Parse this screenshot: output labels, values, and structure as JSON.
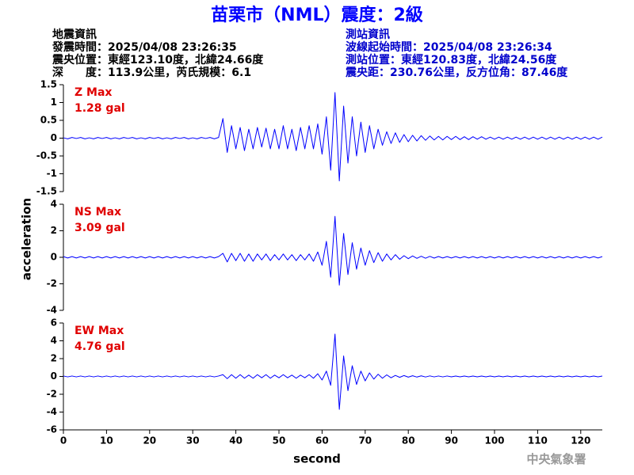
{
  "header": {
    "title": "苗栗市（NML）震度：2級",
    "left": [
      "地震資訊",
      "發震時間：2025/04/08 23:26:35",
      "震央位置：東經123.10度，北緯24.66度",
      "深　　度：113.9公里，芮氏規模：6.1"
    ],
    "right": [
      "測站資訊",
      "波線起始時間：2025/04/08 23:26:34",
      "測站位置：東經120.83度，北緯24.56度",
      "震央距：230.76公里，反方位角：87.46度"
    ]
  },
  "ylabel": "acceleration",
  "xlabel": "second",
  "footer": "中央氣象署",
  "chart_data": [
    {
      "type": "line",
      "color": "#0000ff",
      "max_label": "Z Max",
      "max_value_label": "1.28 gal",
      "xlim": [
        0,
        125
      ],
      "ylim": [
        -1.5,
        1.5
      ],
      "yticks": [
        -1.5,
        -1,
        -0.5,
        0,
        0.5,
        1,
        1.5
      ],
      "x": [
        0,
        1,
        2,
        3,
        4,
        5,
        6,
        7,
        8,
        9,
        10,
        11,
        12,
        13,
        14,
        15,
        16,
        17,
        18,
        19,
        20,
        21,
        22,
        23,
        24,
        25,
        26,
        27,
        28,
        29,
        30,
        31,
        32,
        33,
        34,
        35,
        36,
        37,
        38,
        39,
        40,
        41,
        42,
        43,
        44,
        45,
        46,
        47,
        48,
        49,
        50,
        51,
        52,
        53,
        54,
        55,
        56,
        57,
        58,
        59,
        60,
        61,
        62,
        63,
        64,
        65,
        66,
        67,
        68,
        69,
        70,
        71,
        72,
        73,
        74,
        75,
        76,
        77,
        78,
        79,
        80,
        81,
        82,
        83,
        84,
        85,
        86,
        87,
        88,
        89,
        90,
        91,
        92,
        93,
        94,
        95,
        96,
        97,
        98,
        99,
        100,
        101,
        102,
        103,
        104,
        105,
        106,
        107,
        108,
        109,
        110,
        111,
        112,
        113,
        114,
        115,
        116,
        117,
        118,
        119,
        120,
        121,
        122,
        123,
        124,
        125
      ],
      "values": [
        0.01,
        -0.02,
        0.02,
        -0.01,
        0.02,
        -0.02,
        0.01,
        -0.02,
        0.02,
        -0.01,
        0.02,
        -0.02,
        0.01,
        -0.02,
        0.02,
        -0.01,
        0.02,
        -0.02,
        0.01,
        -0.02,
        0.02,
        -0.01,
        0.02,
        -0.02,
        0.01,
        -0.02,
        0.02,
        -0.01,
        0.02,
        -0.02,
        0.01,
        -0.02,
        0.02,
        -0.01,
        0.02,
        -0.02,
        0.02,
        0.55,
        -0.4,
        0.35,
        -0.3,
        0.3,
        -0.35,
        0.25,
        -0.3,
        0.3,
        -0.25,
        0.28,
        -0.3,
        0.25,
        -0.3,
        0.35,
        -0.3,
        0.25,
        -0.35,
        0.3,
        -0.3,
        0.35,
        -0.3,
        0.4,
        -0.45,
        0.6,
        -0.9,
        1.28,
        -1.2,
        0.9,
        -0.7,
        0.6,
        -0.5,
        0.45,
        -0.4,
        0.35,
        -0.3,
        0.25,
        -0.2,
        0.18,
        -0.15,
        0.15,
        -0.12,
        0.1,
        -0.1,
        0.08,
        -0.08,
        0.07,
        -0.06,
        0.06,
        -0.05,
        0.05,
        -0.05,
        0.05,
        -0.04,
        0.05,
        -0.04,
        0.04,
        -0.04,
        0.04,
        -0.03,
        0.04,
        -0.03,
        0.03,
        -0.03,
        0.03,
        -0.03,
        0.03,
        -0.03,
        0.03,
        -0.03,
        0.03,
        -0.03,
        0.03,
        -0.03,
        0.03,
        -0.03,
        0.03,
        -0.03,
        0.03,
        -0.03,
        0.03,
        -0.03,
        0.03,
        -0.03,
        0.03,
        -0.03,
        0.03,
        -0.03,
        0.03
      ]
    },
    {
      "type": "line",
      "color": "#0000ff",
      "max_label": "NS Max",
      "max_value_label": "3.09 gal",
      "xlim": [
        0,
        125
      ],
      "ylim": [
        -4,
        4
      ],
      "yticks": [
        -4,
        -2,
        0,
        2,
        4
      ],
      "x": [
        0,
        1,
        2,
        3,
        4,
        5,
        6,
        7,
        8,
        9,
        10,
        11,
        12,
        13,
        14,
        15,
        16,
        17,
        18,
        19,
        20,
        21,
        22,
        23,
        24,
        25,
        26,
        27,
        28,
        29,
        30,
        31,
        32,
        33,
        34,
        35,
        36,
        37,
        38,
        39,
        40,
        41,
        42,
        43,
        44,
        45,
        46,
        47,
        48,
        49,
        50,
        51,
        52,
        53,
        54,
        55,
        56,
        57,
        58,
        59,
        60,
        61,
        62,
        63,
        64,
        65,
        66,
        67,
        68,
        69,
        70,
        71,
        72,
        73,
        74,
        75,
        76,
        77,
        78,
        79,
        80,
        81,
        82,
        83,
        84,
        85,
        86,
        87,
        88,
        89,
        90,
        91,
        92,
        93,
        94,
        95,
        96,
        97,
        98,
        99,
        100,
        101,
        102,
        103,
        104,
        105,
        106,
        107,
        108,
        109,
        110,
        111,
        112,
        113,
        114,
        115,
        116,
        117,
        118,
        119,
        120,
        121,
        122,
        123,
        124,
        125
      ],
      "values": [
        0.05,
        -0.05,
        0.05,
        -0.05,
        0.05,
        -0.05,
        0.05,
        -0.05,
        0.05,
        -0.05,
        0.05,
        -0.05,
        0.05,
        -0.05,
        0.05,
        -0.05,
        0.05,
        -0.05,
        0.05,
        -0.05,
        0.05,
        -0.05,
        0.05,
        -0.05,
        0.05,
        -0.05,
        0.05,
        -0.05,
        0.05,
        -0.05,
        0.05,
        -0.05,
        0.05,
        -0.05,
        0.05,
        -0.05,
        0.05,
        0.3,
        -0.35,
        0.3,
        -0.25,
        0.3,
        -0.3,
        0.25,
        -0.3,
        0.25,
        -0.2,
        0.25,
        -0.25,
        0.2,
        -0.2,
        0.25,
        -0.2,
        0.2,
        -0.25,
        0.2,
        -0.2,
        0.25,
        -0.3,
        0.4,
        -0.6,
        1.2,
        -1.5,
        3.09,
        -2.1,
        1.8,
        -1.3,
        1.1,
        -0.9,
        0.7,
        -0.6,
        0.5,
        -0.4,
        0.35,
        -0.3,
        0.25,
        -0.2,
        0.2,
        -0.15,
        0.12,
        -0.1,
        0.1,
        -0.08,
        0.08,
        -0.07,
        0.07,
        -0.06,
        0.06,
        -0.05,
        0.05,
        -0.05,
        0.05,
        -0.05,
        0.05,
        -0.05,
        0.05,
        -0.05,
        0.05,
        -0.05,
        0.05,
        -0.05,
        0.05,
        -0.05,
        0.05,
        -0.05,
        0.05,
        -0.05,
        0.05,
        -0.05,
        0.05,
        -0.05,
        0.05,
        -0.05,
        0.05,
        -0.05,
        0.05,
        -0.05,
        0.05,
        -0.05,
        0.05,
        -0.05,
        0.05,
        -0.05,
        0.05,
        -0.05,
        0.05
      ]
    },
    {
      "type": "line",
      "color": "#0000ff",
      "max_label": "EW Max",
      "max_value_label": "4.76 gal",
      "xlim": [
        0,
        125
      ],
      "ylim": [
        -6,
        6
      ],
      "yticks": [
        -6,
        -4,
        -2,
        0,
        2,
        4,
        6
      ],
      "xticks": [
        0,
        10,
        20,
        30,
        40,
        50,
        60,
        70,
        80,
        90,
        100,
        110,
        120
      ],
      "x": [
        0,
        1,
        2,
        3,
        4,
        5,
        6,
        7,
        8,
        9,
        10,
        11,
        12,
        13,
        14,
        15,
        16,
        17,
        18,
        19,
        20,
        21,
        22,
        23,
        24,
        25,
        26,
        27,
        28,
        29,
        30,
        31,
        32,
        33,
        34,
        35,
        36,
        37,
        38,
        39,
        40,
        41,
        42,
        43,
        44,
        45,
        46,
        47,
        48,
        49,
        50,
        51,
        52,
        53,
        54,
        55,
        56,
        57,
        58,
        59,
        60,
        61,
        62,
        63,
        64,
        65,
        66,
        67,
        68,
        69,
        70,
        71,
        72,
        73,
        74,
        75,
        76,
        77,
        78,
        79,
        80,
        81,
        82,
        83,
        84,
        85,
        86,
        87,
        88,
        89,
        90,
        91,
        92,
        93,
        94,
        95,
        96,
        97,
        98,
        99,
        100,
        101,
        102,
        103,
        104,
        105,
        106,
        107,
        108,
        109,
        110,
        111,
        112,
        113,
        114,
        115,
        116,
        117,
        118,
        119,
        120,
        121,
        122,
        123,
        124,
        125
      ],
      "values": [
        0.05,
        -0.05,
        0.05,
        -0.05,
        0.05,
        -0.05,
        0.05,
        -0.05,
        0.05,
        -0.05,
        0.05,
        -0.05,
        0.05,
        -0.05,
        0.05,
        -0.05,
        0.05,
        -0.05,
        0.05,
        -0.05,
        0.05,
        -0.05,
        0.05,
        -0.05,
        0.05,
        -0.05,
        0.05,
        -0.05,
        0.05,
        -0.05,
        0.05,
        -0.05,
        0.05,
        -0.05,
        0.05,
        -0.05,
        0.05,
        0.2,
        -0.25,
        0.2,
        -0.2,
        0.2,
        -0.2,
        0.15,
        -0.2,
        0.2,
        -0.15,
        0.2,
        -0.2,
        0.15,
        -0.15,
        0.2,
        -0.15,
        0.15,
        -0.2,
        0.15,
        -0.15,
        0.2,
        -0.2,
        0.3,
        -0.4,
        0.6,
        -1.0,
        4.76,
        -3.7,
        2.3,
        -1.6,
        1.2,
        -0.9,
        0.6,
        -0.5,
        0.4,
        -0.3,
        0.25,
        -0.2,
        0.18,
        -0.15,
        0.12,
        -0.1,
        0.1,
        -0.08,
        0.08,
        -0.07,
        0.07,
        -0.06,
        0.06,
        -0.05,
        0.05,
        -0.05,
        0.05,
        -0.04,
        0.04,
        -0.04,
        0.04,
        -0.04,
        0.04,
        -0.04,
        0.04,
        -0.04,
        0.04,
        -0.04,
        0.04,
        -0.04,
        0.04,
        -0.04,
        0.04,
        -0.04,
        0.04,
        -0.04,
        0.04,
        -0.04,
        0.04,
        -0.04,
        0.04,
        -0.04,
        0.04,
        -0.04,
        0.04,
        -0.04,
        0.04,
        -0.04,
        0.04,
        -0.04,
        0.04,
        -0.04,
        0.04
      ]
    }
  ]
}
